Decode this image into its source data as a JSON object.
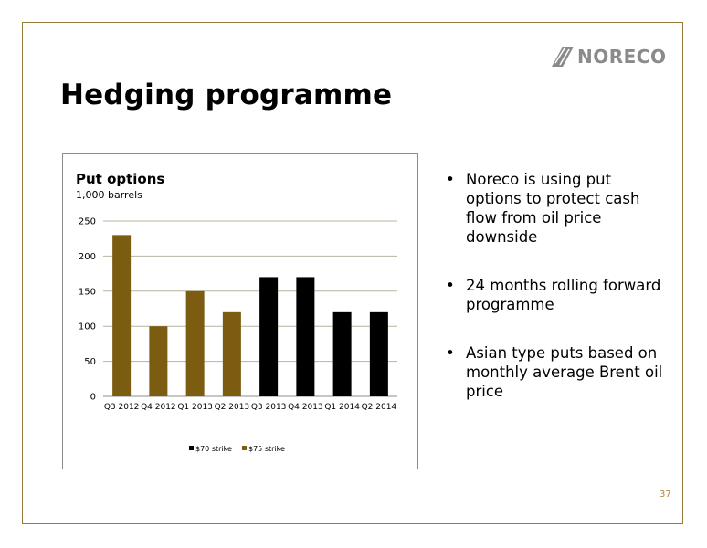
{
  "slide": {
    "title": "Hedging programme",
    "logo_text": "NORECO",
    "page_number": "37",
    "bullets": [
      "Noreco is using put options to protect cash flow from oil price downside",
      "24 months rolling forward programme",
      "Asian type puts based on monthly average Brent oil price"
    ]
  },
  "colors": {
    "frame": "#9a7a3a",
    "bronze": "#7b5c10",
    "black": "#000000",
    "grid": "#b5b5a0"
  },
  "chart_data": {
    "type": "bar",
    "title": "Put options",
    "subtitle": "1,000 barrels",
    "categories": [
      "Q3 2012",
      "Q4 2012",
      "Q1 2013",
      "Q2 2013",
      "Q3 2013",
      "Q4 2013",
      "Q1 2014",
      "Q2 2014"
    ],
    "yticks": [
      "0",
      "50",
      "100",
      "150",
      "200",
      "250"
    ],
    "ylim": [
      0,
      250
    ],
    "series": [
      {
        "name": "$70 strike",
        "color": "#000000",
        "values": [
          0,
          0,
          0,
          0,
          170,
          170,
          120,
          120
        ]
      },
      {
        "name": "$75 strike",
        "color": "#7b5c10",
        "values": [
          230,
          100,
          150,
          120,
          0,
          0,
          0,
          0
        ]
      }
    ],
    "grid": true,
    "legend": "bottom"
  }
}
